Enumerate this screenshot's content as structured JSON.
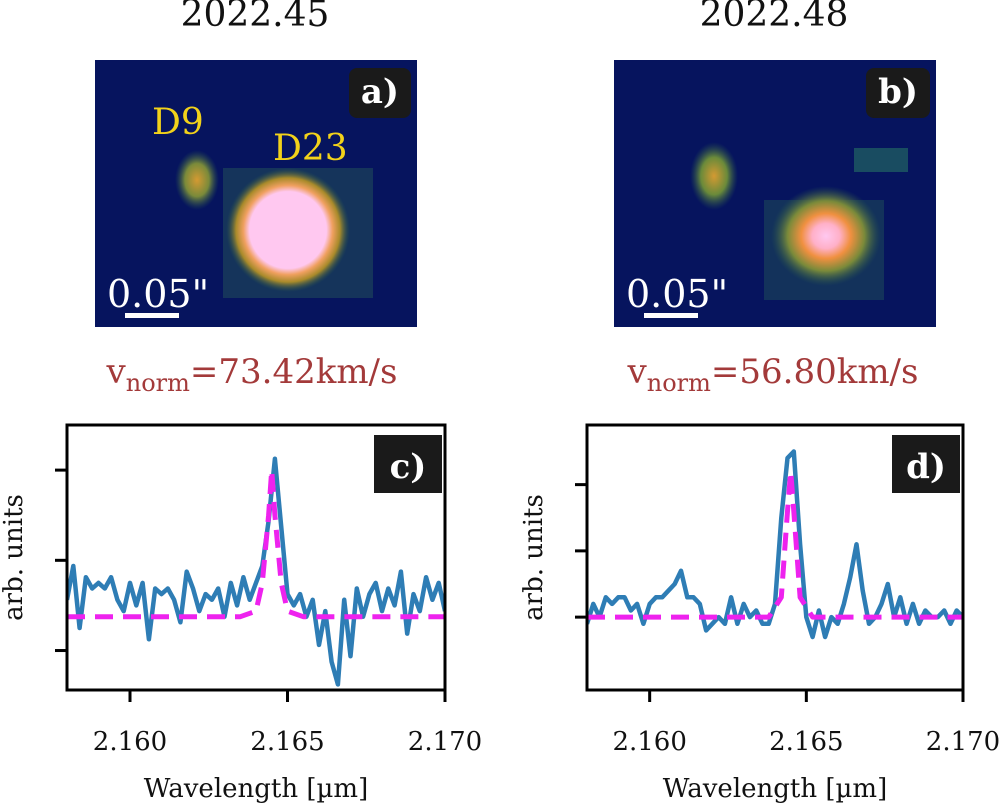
{
  "panels": [
    {
      "epoch": "2022.45",
      "image_badge": "a)",
      "scale_label": "0.05\"",
      "labels": [
        "D9",
        "D23"
      ],
      "vnorm_sub": "norm",
      "vnorm_value": "=73.42km/s",
      "spectrum_badge": "c)"
    },
    {
      "epoch": "2022.48",
      "image_badge": "b)",
      "scale_label": "0.05\"",
      "labels": [],
      "vnorm_sub": "norm",
      "vnorm_value": "=56.80km/s",
      "spectrum_badge": "d)"
    }
  ],
  "chart_data": [
    {
      "type": "line",
      "panel": "c)",
      "xlabel": "Wavelength [µm]",
      "ylabel": "arb. units",
      "xlim": [
        2.158,
        2.17
      ],
      "ylim": [
        -1.3,
        3.4
      ],
      "xticks": [
        "2.160",
        "2.165",
        "2.170"
      ],
      "xtick_values": [
        2.16,
        2.165,
        2.17
      ],
      "ytick_values": [
        -0.6,
        1.0,
        2.6
      ],
      "series": [
        {
          "style": "solid",
          "color": "#2e7db5",
          "x": [
            2.158,
            2.1582,
            2.1584,
            2.1586,
            2.1588,
            2.159,
            2.1592,
            2.1594,
            2.1596,
            2.1598,
            2.16,
            2.1602,
            2.1604,
            2.1606,
            2.1608,
            2.161,
            2.1612,
            2.1614,
            2.1616,
            2.1618,
            2.162,
            2.1622,
            2.1624,
            2.1626,
            2.1628,
            2.163,
            2.1632,
            2.1634,
            2.1636,
            2.1638,
            2.164,
            2.1642,
            2.1644,
            2.1646,
            2.1648,
            2.165,
            2.1652,
            2.1654,
            2.1656,
            2.1658,
            2.166,
            2.1662,
            2.1664,
            2.1666,
            2.1668,
            2.167,
            2.1672,
            2.1674,
            2.1676,
            2.1678,
            2.168,
            2.1682,
            2.1684,
            2.1686,
            2.1688,
            2.169,
            2.1692,
            2.1694,
            2.1696,
            2.1698,
            2.17
          ],
          "y": [
            0.3,
            0.9,
            -0.2,
            0.7,
            0.5,
            0.6,
            0.5,
            0.7,
            0.3,
            0.1,
            0.6,
            0.2,
            0.6,
            -0.4,
            0.5,
            0.4,
            0.5,
            0.3,
            -0.1,
            0.8,
            0.5,
            0.1,
            0.4,
            0.3,
            0.5,
            0.0,
            0.6,
            0.2,
            0.7,
            0.3,
            0.6,
            0.9,
            1.7,
            2.8,
            1.6,
            0.4,
            0.2,
            0.4,
            0.0,
            0.3,
            -0.5,
            0.1,
            -0.8,
            -1.2,
            0.3,
            -0.7,
            0.5,
            0.0,
            0.4,
            0.6,
            0.1,
            0.5,
            0.2,
            0.8,
            -0.3,
            0.4,
            0.1,
            0.7,
            0.3,
            0.6,
            0.1
          ]
        },
        {
          "style": "dashed",
          "color": "#ee22ee",
          "x": [
            2.158,
            2.162,
            2.1635,
            2.164,
            2.1642,
            2.1644,
            2.1645,
            2.1646,
            2.1648,
            2.165,
            2.1655,
            2.167,
            2.17
          ],
          "y": [
            0.0,
            0.0,
            0.0,
            0.1,
            0.6,
            1.8,
            2.6,
            1.8,
            0.6,
            0.1,
            0.0,
            0.0,
            0.0
          ]
        }
      ]
    },
    {
      "type": "line",
      "panel": "d)",
      "xlabel": "Wavelength [µm]",
      "ylabel": "arb. units",
      "xlim": [
        2.158,
        2.17
      ],
      "ylim": [
        -1.1,
        2.9
      ],
      "xticks": [
        "2.160",
        "2.165",
        "2.170"
      ],
      "xtick_values": [
        2.16,
        2.165,
        2.17
      ],
      "ytick_values": [
        0.0,
        1.0,
        2.0
      ],
      "series": [
        {
          "style": "solid",
          "color": "#2e7db5",
          "x": [
            2.158,
            2.1582,
            2.1584,
            2.1586,
            2.1588,
            2.159,
            2.1592,
            2.1594,
            2.1596,
            2.1598,
            2.16,
            2.1602,
            2.1604,
            2.1606,
            2.1608,
            2.161,
            2.1612,
            2.1614,
            2.1616,
            2.1618,
            2.162,
            2.1622,
            2.1624,
            2.1626,
            2.1628,
            2.163,
            2.1632,
            2.1634,
            2.1636,
            2.1638,
            2.164,
            2.1642,
            2.1644,
            2.1646,
            2.1648,
            2.165,
            2.1652,
            2.1654,
            2.1656,
            2.1658,
            2.166,
            2.1662,
            2.1664,
            2.1666,
            2.1668,
            2.167,
            2.1672,
            2.1674,
            2.1676,
            2.1678,
            2.168,
            2.1682,
            2.1684,
            2.1686,
            2.1688,
            2.169,
            2.1692,
            2.1694,
            2.1696,
            2.1698,
            2.17
          ],
          "y": [
            -0.1,
            0.2,
            0.0,
            0.3,
            0.2,
            0.3,
            0.3,
            0.1,
            0.2,
            -0.1,
            0.2,
            0.3,
            0.3,
            0.4,
            0.5,
            0.7,
            0.3,
            0.3,
            0.2,
            -0.2,
            -0.1,
            0.0,
            -0.1,
            0.3,
            -0.1,
            0.2,
            0.0,
            0.1,
            -0.1,
            -0.1,
            0.2,
            1.5,
            2.4,
            2.5,
            1.1,
            0.0,
            -0.3,
            0.1,
            -0.3,
            0.0,
            -0.1,
            0.2,
            0.6,
            1.1,
            0.4,
            -0.1,
            0.0,
            0.2,
            0.5,
            0.0,
            0.3,
            -0.1,
            0.2,
            -0.1,
            0.1,
            0.0,
            0.0,
            0.1,
            -0.1,
            0.1,
            0.0
          ]
        },
        {
          "style": "dashed",
          "color": "#ee22ee",
          "x": [
            2.158,
            2.162,
            2.1638,
            2.1642,
            2.1644,
            2.1645,
            2.1646,
            2.1648,
            2.1652,
            2.166,
            2.17
          ],
          "y": [
            0.0,
            0.0,
            0.0,
            0.3,
            1.6,
            2.2,
            1.6,
            0.3,
            0.0,
            0.0,
            0.0
          ]
        }
      ]
    }
  ]
}
